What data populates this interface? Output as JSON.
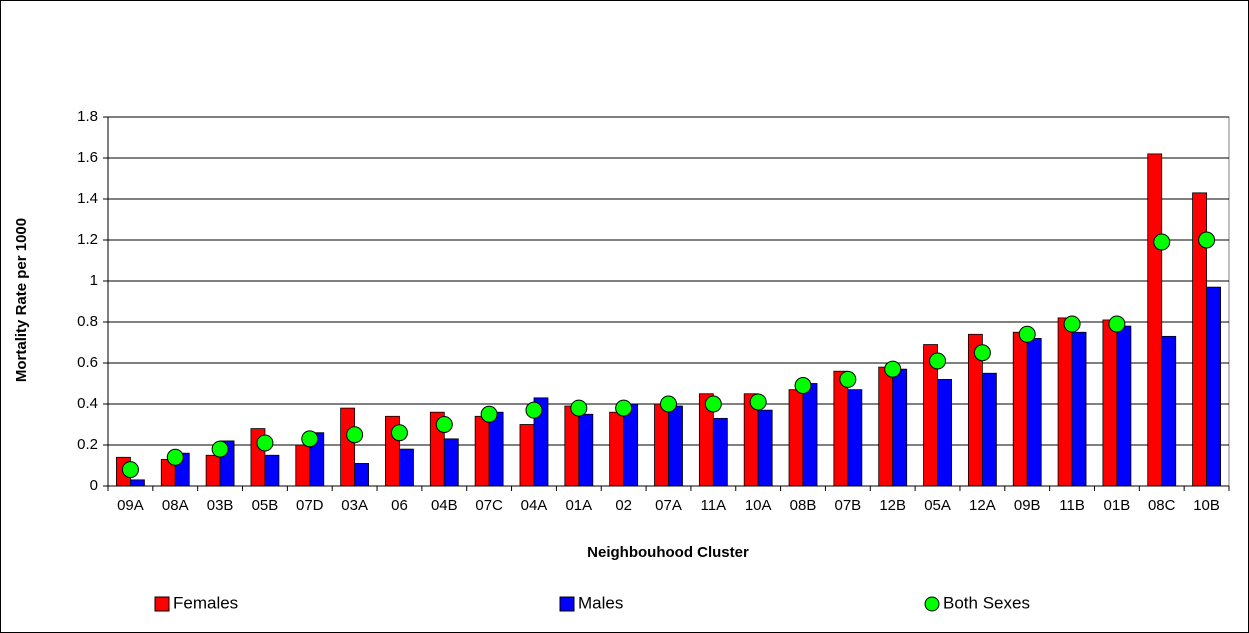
{
  "chart_data": {
    "type": "bar",
    "y_label": "Mortality Rate per 1000",
    "x_label": "Neighbouhood Cluster",
    "categories": [
      "09A",
      "08A",
      "03B",
      "05B",
      "07D",
      "03A",
      "06",
      "04B",
      "07C",
      "04A",
      "01A",
      "02",
      "07A",
      "11A",
      "10A",
      "08B",
      "07B",
      "12B",
      "05A",
      "12A",
      "09B",
      "11B",
      "01B",
      "08C",
      "10B"
    ],
    "series": [
      {
        "name": "Females",
        "color": "#ff0000",
        "values": [
          0.14,
          0.13,
          0.15,
          0.28,
          0.2,
          0.38,
          0.34,
          0.36,
          0.34,
          0.3,
          0.39,
          0.36,
          0.4,
          0.45,
          0.45,
          0.47,
          0.56,
          0.58,
          0.69,
          0.74,
          0.75,
          0.82,
          0.81,
          1.62,
          1.43
        ]
      },
      {
        "name": "Males",
        "color": "#0000ff",
        "values": [
          0.03,
          0.16,
          0.22,
          0.15,
          0.26,
          0.11,
          0.18,
          0.23,
          0.36,
          0.43,
          0.35,
          0.4,
          0.39,
          0.33,
          0.37,
          0.5,
          0.47,
          0.57,
          0.52,
          0.55,
          0.72,
          0.75,
          0.78,
          0.73,
          0.97
        ]
      },
      {
        "name": "Both Sexes",
        "type": "scatter",
        "color": "#00ff00",
        "values": [
          0.08,
          0.14,
          0.18,
          0.21,
          0.23,
          0.25,
          0.26,
          0.3,
          0.35,
          0.37,
          0.38,
          0.38,
          0.4,
          0.4,
          0.41,
          0.49,
          0.52,
          0.57,
          0.61,
          0.65,
          0.74,
          0.79,
          0.79,
          1.19,
          1.2
        ]
      }
    ],
    "ylim": [
      0,
      1.8
    ],
    "yticks": [
      0,
      0.2,
      0.4,
      0.6,
      0.8,
      1,
      1.2,
      1.4,
      1.6,
      1.8
    ],
    "grid": true,
    "legend": "bottom"
  }
}
